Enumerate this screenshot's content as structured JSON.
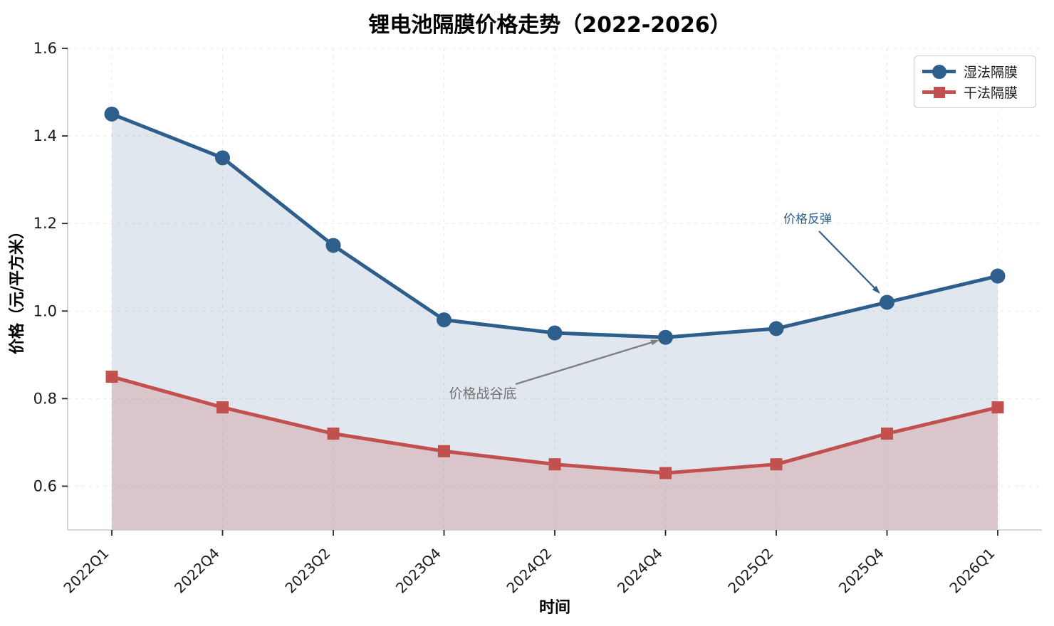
{
  "chart_data": {
    "type": "line",
    "title": "锂电池隔膜价格走势（2022-2026）",
    "xlabel": "时间",
    "ylabel": "价格（元/平方米）",
    "categories": [
      "2022Q1",
      "2022Q4",
      "2023Q2",
      "2023Q4",
      "2024Q2",
      "2024Q4",
      "2025Q2",
      "2025Q4",
      "2026Q1"
    ],
    "series": [
      {
        "name": "湿法隔膜",
        "marker": "circle",
        "color": "#2e5f8c",
        "values": [
          1.45,
          1.35,
          1.15,
          0.98,
          0.95,
          0.94,
          0.96,
          1.02,
          1.08
        ]
      },
      {
        "name": "干法隔膜",
        "marker": "square",
        "color": "#c2504e",
        "values": [
          0.85,
          0.78,
          0.72,
          0.68,
          0.65,
          0.63,
          0.65,
          0.72,
          0.78
        ]
      }
    ],
    "ylim": [
      0.5,
      1.6
    ],
    "yticks": [
      0.6,
      0.8,
      1.0,
      1.2,
      1.4,
      1.6
    ],
    "grid": true,
    "legend_position": "upper right",
    "annotations": [
      {
        "text": "价格反弹",
        "color": "#2e5f8c",
        "target_category": "2025Q4",
        "target_value": 1.02
      },
      {
        "text": "价格战谷底",
        "color": "#737373",
        "target_category": "2024Q4",
        "target_value": 0.94
      }
    ]
  }
}
